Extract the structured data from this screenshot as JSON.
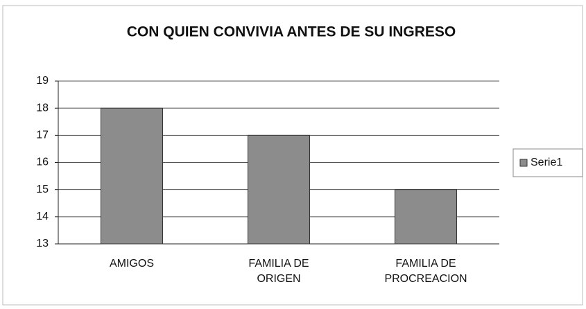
{
  "chart_data": {
    "type": "bar",
    "title": "CON QUIEN CONVIVIA ANTES DE SU INGRESO",
    "categories": [
      "AMIGOS",
      "FAMILIA DE ORIGEN",
      "FAMILIA DE PROCREACION"
    ],
    "series": [
      {
        "name": "Serie1",
        "color": "#8c8c8c",
        "values": [
          18,
          17,
          15
        ]
      }
    ],
    "ylim": [
      13,
      19
    ],
    "yticks": [
      13,
      14,
      15,
      16,
      17,
      18,
      19
    ],
    "grid": true,
    "legend": "right"
  }
}
